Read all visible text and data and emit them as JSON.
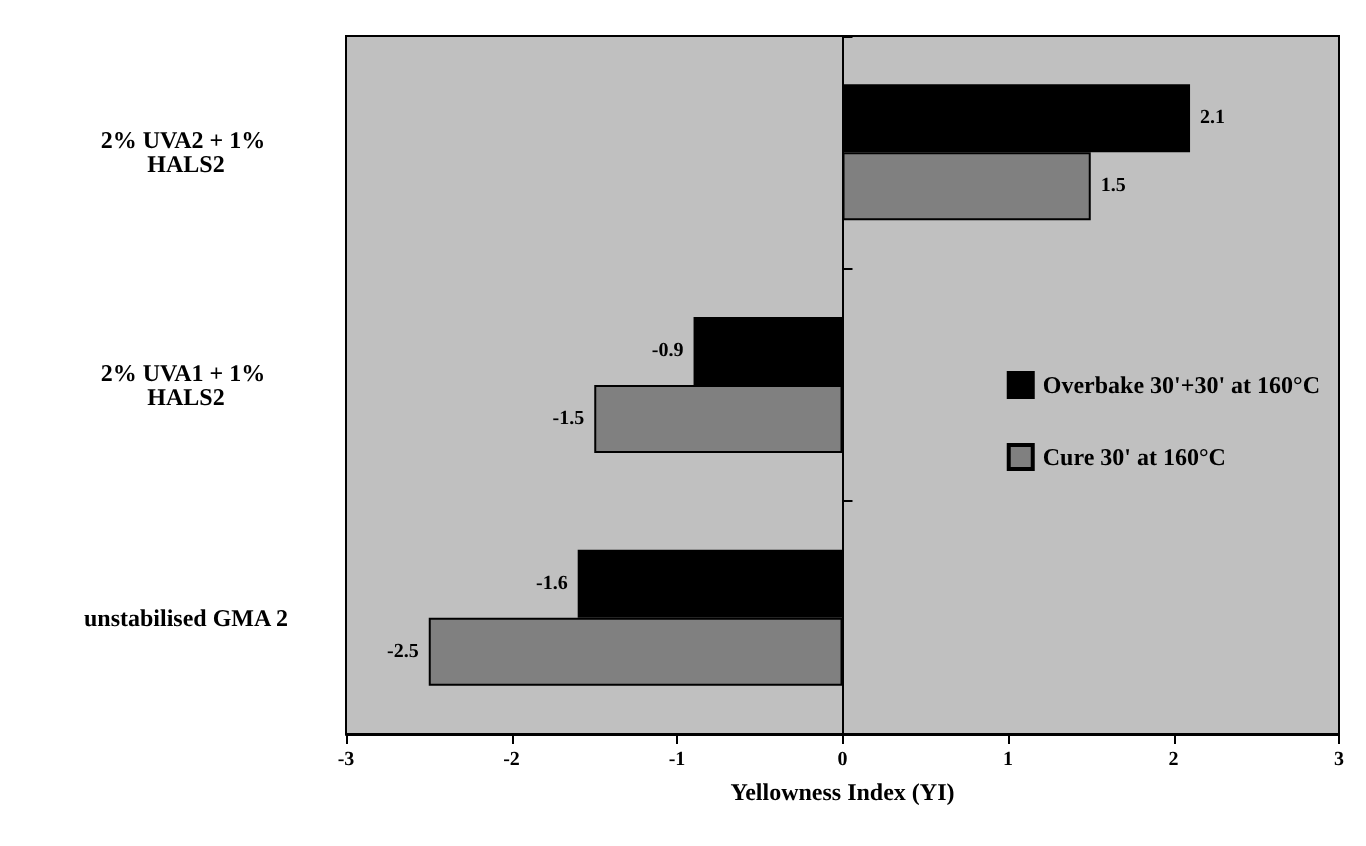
{
  "chart_data": {
    "type": "bar",
    "orientation": "horizontal",
    "xlabel": "Yellowness Index (YI)",
    "categories": [
      "2% UVA2 + 1% HALS2",
      "2% UVA1 + 1% HALS2",
      "unstabilised GMA 2"
    ],
    "series": [
      {
        "name": "Overbake 30'+30' at 160°C",
        "color": "#000000",
        "values": [
          2.1,
          -0.9,
          -1.6
        ]
      },
      {
        "name": "Cure 30' at 160°C",
        "color": "#808080",
        "values": [
          1.5,
          -1.5,
          -2.5
        ]
      }
    ],
    "xlim": [
      -3,
      3
    ],
    "xticks": [
      -3,
      -2,
      -1,
      0,
      1,
      2,
      3
    ],
    "data_labels": true,
    "legend": "right"
  }
}
